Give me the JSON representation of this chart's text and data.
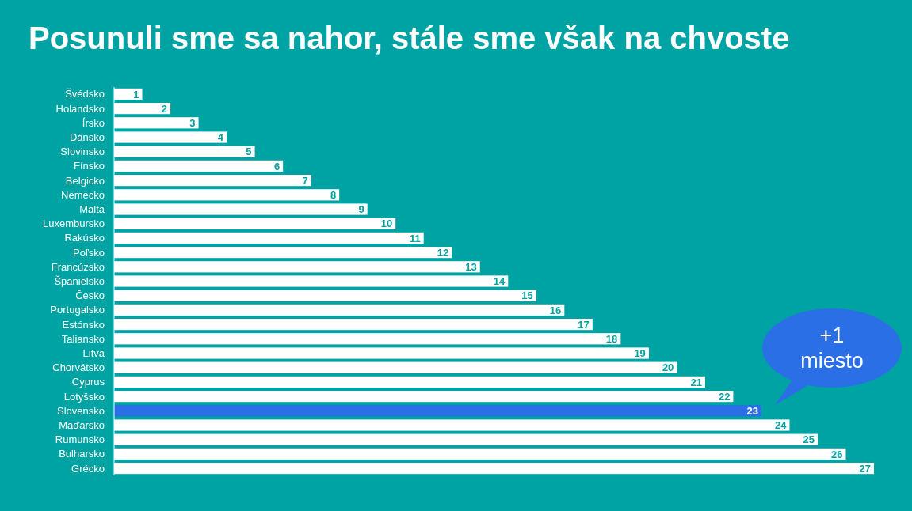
{
  "chart_data": {
    "type": "bar",
    "orientation": "horizontal",
    "title": "Posunuli sme sa nahor, stále sme však na chvoste",
    "categories": [
      "Švédsko",
      "Holandsko",
      "Írsko",
      "Dánsko",
      "Slovinsko",
      "Fínsko",
      "Belgicko",
      "Nemecko",
      "Malta",
      "Luxembursko",
      "Rakúsko",
      "Poľsko",
      "Francúzsko",
      "Španielsko",
      "Česko",
      "Portugalsko",
      "Estónsko",
      "Taliansko",
      "Litva",
      "Chorvátsko",
      "Cyprus",
      "Lotyšsko",
      "Slovensko",
      "Maďarsko",
      "Rumunsko",
      "Bulharsko",
      "Grécko"
    ],
    "values": [
      1,
      2,
      3,
      4,
      5,
      6,
      7,
      8,
      9,
      10,
      11,
      12,
      13,
      14,
      15,
      16,
      17,
      18,
      19,
      20,
      21,
      22,
      23,
      24,
      25,
      26,
      27
    ],
    "colors": [
      "#ffffff",
      "#ffffff",
      "#ffffff",
      "#ffffff",
      "#ffffff",
      "#ffffff",
      "#ffffff",
      "#ffffff",
      "#ffffff",
      "#ffffff",
      "#ffffff",
      "#ffffff",
      "#ffffff",
      "#ffffff",
      "#ffffff",
      "#ffffff",
      "#ffffff",
      "#ffffff",
      "#ffffff",
      "#ffffff",
      "#ffffff",
      "#ffffff",
      "#2b6fe6",
      "#ffffff",
      "#ffffff",
      "#ffffff",
      "#ffffff"
    ],
    "data_labels": true,
    "annotations": [
      "+1\nmiesto"
    ]
  }
}
